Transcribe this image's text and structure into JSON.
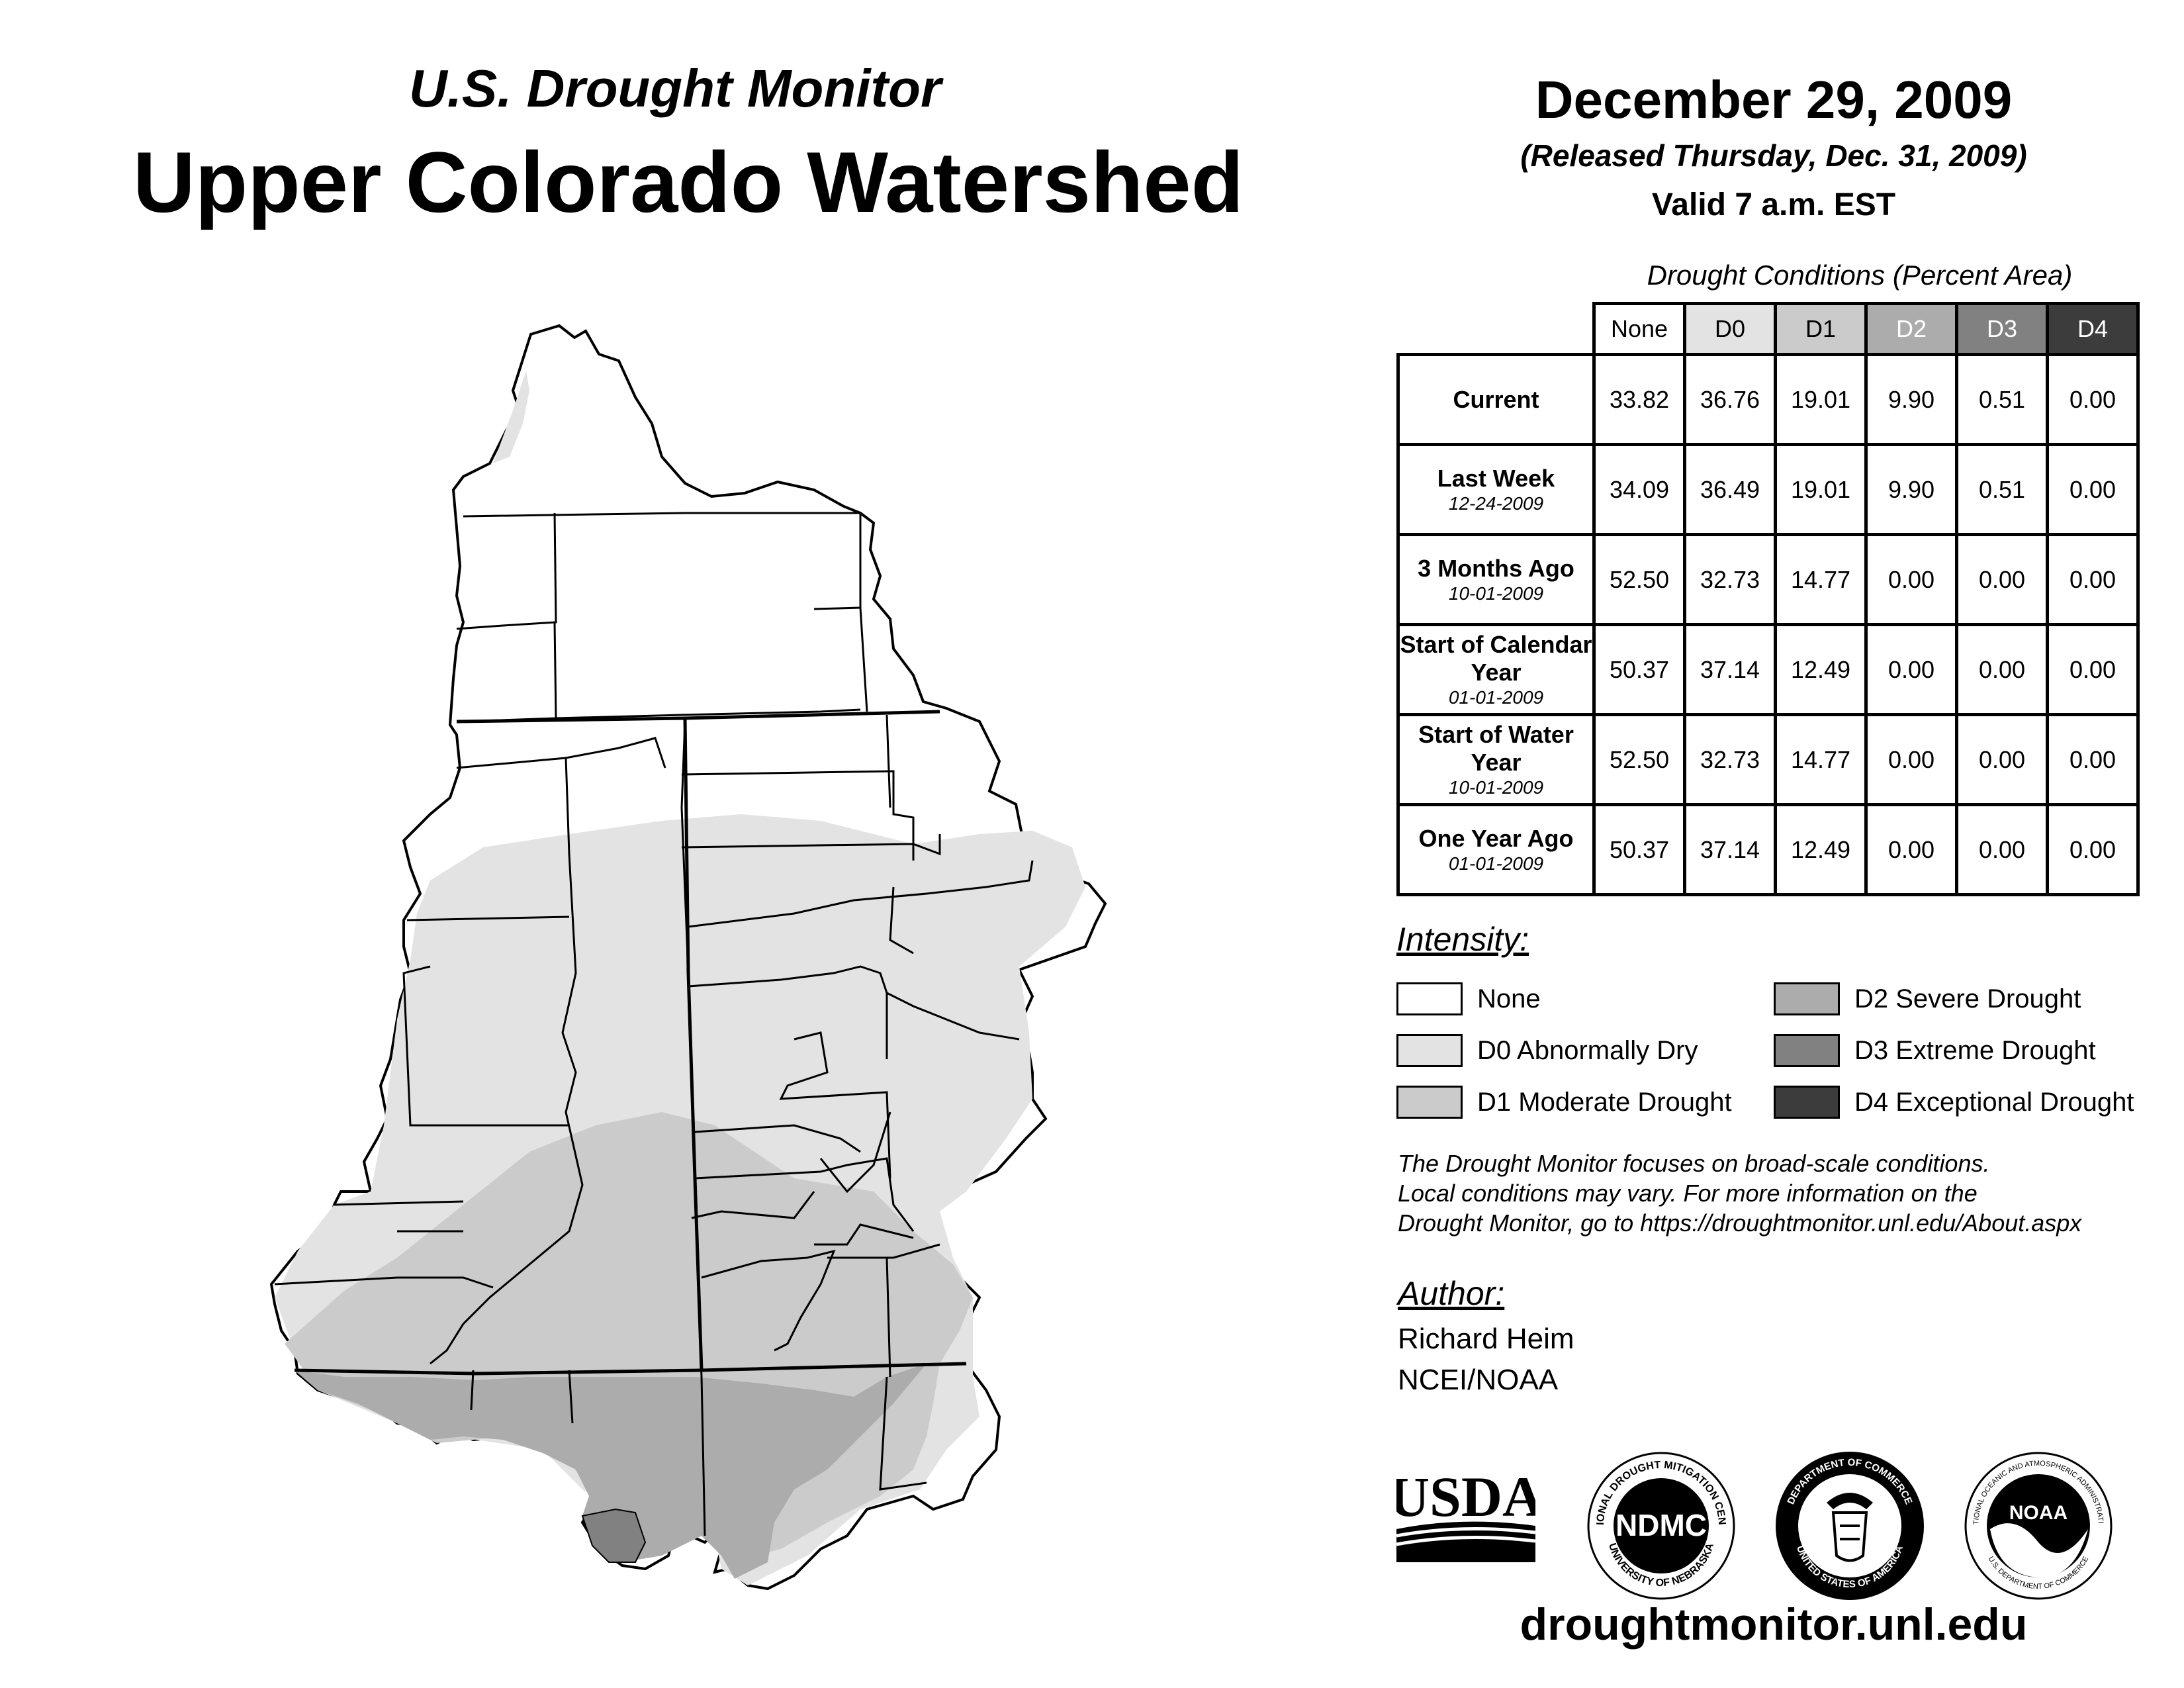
{
  "header": {
    "subtitle": "U.S. Drought Monitor",
    "title": "Upper Colorado Watershed",
    "date": "December 29, 2009",
    "released": "(Released Thursday, Dec. 31, 2009)",
    "valid": "Valid 7 a.m. EST"
  },
  "table": {
    "caption": "Drought Conditions (Percent Area)",
    "columns": [
      {
        "label": "None",
        "bg": "#ffffff",
        "fg": "#000000"
      },
      {
        "label": "D0",
        "bg": "#e3e3e3",
        "fg": "#000000"
      },
      {
        "label": "D1",
        "bg": "#cbcbcb",
        "fg": "#000000"
      },
      {
        "label": "D2",
        "bg": "#acacac",
        "fg": "#ffffff"
      },
      {
        "label": "D3",
        "bg": "#818181",
        "fg": "#ffffff"
      },
      {
        "label": "D4",
        "bg": "#3c3c3c",
        "fg": "#ffffff"
      }
    ],
    "rows": [
      {
        "label": "Current",
        "sub": "",
        "values": [
          "33.82",
          "36.76",
          "19.01",
          "9.90",
          "0.51",
          "0.00"
        ]
      },
      {
        "label": "Last Week",
        "sub": "12-24-2009",
        "values": [
          "34.09",
          "36.49",
          "19.01",
          "9.90",
          "0.51",
          "0.00"
        ]
      },
      {
        "label": "3 Months Ago",
        "sub": "10-01-2009",
        "values": [
          "52.50",
          "32.73",
          "14.77",
          "0.00",
          "0.00",
          "0.00"
        ]
      },
      {
        "label": "Start of Calendar Year",
        "sub": "01-01-2009",
        "values": [
          "50.37",
          "37.14",
          "12.49",
          "0.00",
          "0.00",
          "0.00"
        ]
      },
      {
        "label": "Start of Water Year",
        "sub": "10-01-2009",
        "values": [
          "52.50",
          "32.73",
          "14.77",
          "0.00",
          "0.00",
          "0.00"
        ]
      },
      {
        "label": "One Year Ago",
        "sub": "01-01-2009",
        "values": [
          "50.37",
          "37.14",
          "12.49",
          "0.00",
          "0.00",
          "0.00"
        ]
      }
    ]
  },
  "legend": {
    "heading": "Intensity:",
    "items": [
      {
        "label": "None",
        "color": "#ffffff"
      },
      {
        "label": "D0 Abnormally Dry",
        "color": "#e3e3e3"
      },
      {
        "label": "D1 Moderate Drought",
        "color": "#cbcbcb"
      },
      {
        "label": "D2 Severe Drought",
        "color": "#acacac"
      },
      {
        "label": "D3 Extreme Drought",
        "color": "#818181"
      },
      {
        "label": "D4 Exceptional Drought",
        "color": "#3c3c3c"
      }
    ]
  },
  "note": {
    "line1": "The Drought Monitor focuses on broad-scale conditions.",
    "line2": "Local conditions may vary. For more information on the",
    "line3": "Drought Monitor, go to https://droughtmonitor.unl.edu/About.aspx"
  },
  "author": {
    "heading": "Author:",
    "name": "Richard Heim",
    "org": "NCEI/NOAA"
  },
  "logos": {
    "usda": "USDA",
    "ndmc": "NDMC",
    "ndmc_ring_top": "NATIONAL DROUGHT MITIGATION CENTER",
    "ndmc_ring_bottom": "UNIVERSITY OF NEBRASKA",
    "doc_ring_top": "DEPARTMENT OF COMMERCE",
    "doc_ring_bottom": "UNITED STATES OF AMERICA",
    "noaa": "NOAA",
    "noaa_ring_top": "NATIONAL OCEANIC AND ATMOSPHERIC ADMINISTRATION",
    "noaa_ring_bottom": "U.S. DEPARTMENT OF COMMERCE"
  },
  "footer": {
    "url": "droughtmonitor.unl.edu"
  }
}
